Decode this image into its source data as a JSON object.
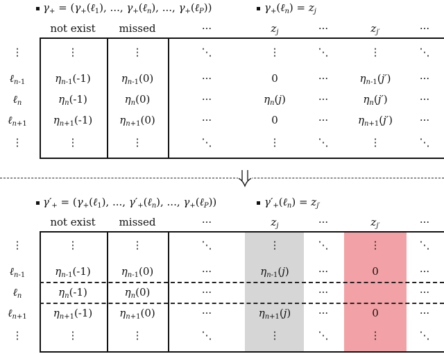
{
  "top": {
    "bullet_gamma": "γ+ = (γ+(ℓ1), ..., γ+(ℓn), ..., γ+(ℓP))",
    "bullet_z": "γ+(ℓn) = zj",
    "headers": [
      "not exist",
      "missed",
      "···",
      "zj",
      "···",
      "zj′",
      "···"
    ],
    "row_labels": [
      "⋮",
      "ℓn-1",
      "ℓn",
      "ℓn+1",
      "⋮"
    ],
    "rows": [
      [
        "⋮",
        "⋮",
        "⋱",
        "⋮",
        "⋱",
        "⋮",
        "⋱"
      ],
      [
        "ηn-1(-1)",
        "ηn-1(0)",
        "···",
        "0",
        "···",
        "ηn-1(j′)",
        "···"
      ],
      [
        "ηn(-1)",
        "ηn(0)",
        "···",
        "ηn(j)",
        "···",
        "ηn(j′)",
        "···"
      ],
      [
        "ηn+1(-1)",
        "ηn+1(0)",
        "···",
        "0",
        "···",
        "ηn+1(j′)",
        "···"
      ],
      [
        "⋮",
        "⋮",
        "⋱",
        "⋮",
        "⋱",
        "⋮",
        "⋱"
      ]
    ]
  },
  "arrow": "⇓",
  "bottom": {
    "bullet_gamma": "γ′+ = (γ+(ℓ1), ..., γ′+(ℓn), ..., γ+(ℓP))",
    "bullet_z": "γ′+(ℓn) = zj′",
    "headers": [
      "not exist",
      "missed",
      "···",
      "zj",
      "···",
      "zj′",
      "···"
    ],
    "row_labels": [
      "⋮",
      "ℓn-1",
      "ℓn",
      "ℓn+1",
      "⋮"
    ],
    "rows": [
      [
        "⋮",
        "⋮",
        "⋱",
        "⋮",
        "⋱",
        "⋮",
        "⋱"
      ],
      [
        "ηn-1(-1)",
        "ηn-1(0)",
        "···",
        "ηn-1(j)",
        "···",
        "0",
        "···"
      ],
      [
        "ηn(-1)",
        "ηn(0)",
        "···",
        "",
        "···",
        "",
        "···"
      ],
      [
        "ηn+1(-1)",
        "ηn+1(0)",
        "···",
        "ηn+1(j)",
        "···",
        "0",
        "···"
      ],
      [
        "⋮",
        "⋮",
        "⋱",
        "⋮",
        "⋱",
        "⋮",
        "⋱"
      ]
    ]
  },
  "colors": {
    "gray_shade": "#d6d6d6",
    "red_shade": "#f2a2a6"
  }
}
